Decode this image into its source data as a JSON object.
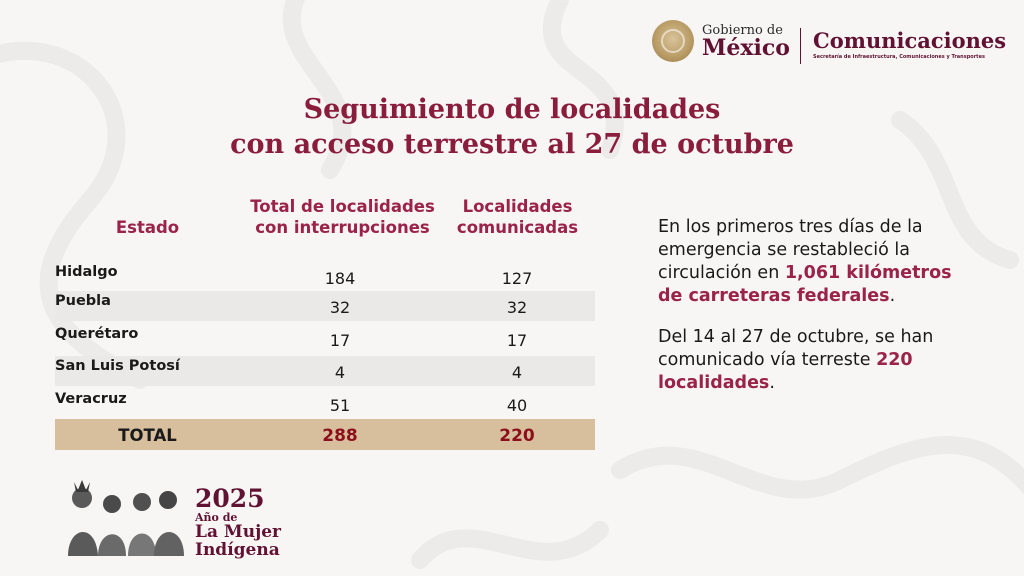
{
  "header": {
    "gobierno_small": "Gobierno de",
    "gobierno_big": "México",
    "comunicaciones": "Comunicaciones",
    "comunicaciones_sub": "Secretaría de Infraestructura, Comunicaciones y Transportes"
  },
  "title": {
    "line1": "Seguimiento de localidades",
    "line2": "con acceso terrestre al 27 de octubre"
  },
  "table": {
    "headers": {
      "estado": "Estado",
      "total_line1": "Total de localidades",
      "total_line2": "con interrupciones",
      "comunicadas_line1": "Localidades",
      "comunicadas_line2": "comunicadas"
    },
    "rows": [
      {
        "estado": "Hidalgo",
        "total": "184",
        "comunicadas": "127"
      },
      {
        "estado": "Puebla",
        "total": "32",
        "comunicadas": "32"
      },
      {
        "estado": "Querétaro",
        "total": "17",
        "comunicadas": "17"
      },
      {
        "estado": "San Luis Potosí",
        "total": "4",
        "comunicadas": "4"
      },
      {
        "estado": "Veracruz",
        "total": "51",
        "comunicadas": "40"
      }
    ],
    "total": {
      "label": "TOTAL",
      "total": "288",
      "comunicadas": "220"
    }
  },
  "info": {
    "p1_a": "En los primeros tres días de la emergencia se restableció la circulación en ",
    "p1_hl": "1,061 kilómetros de carreteras federales",
    "p1_b": ".",
    "p2_a": "Del 14 al 27 de octubre, se han comunicado vía terreste ",
    "p2_hl": "220 localidades",
    "p2_b": "."
  },
  "banner": {
    "year": "2025",
    "ano_de": "Año de",
    "mujer": "La Mujer",
    "indigena": "Indígena"
  },
  "colors": {
    "brand": "#611232",
    "heading": "#8a1c3c",
    "total_bg": "#d7bf9d",
    "total_values": "#8c0f1b"
  }
}
